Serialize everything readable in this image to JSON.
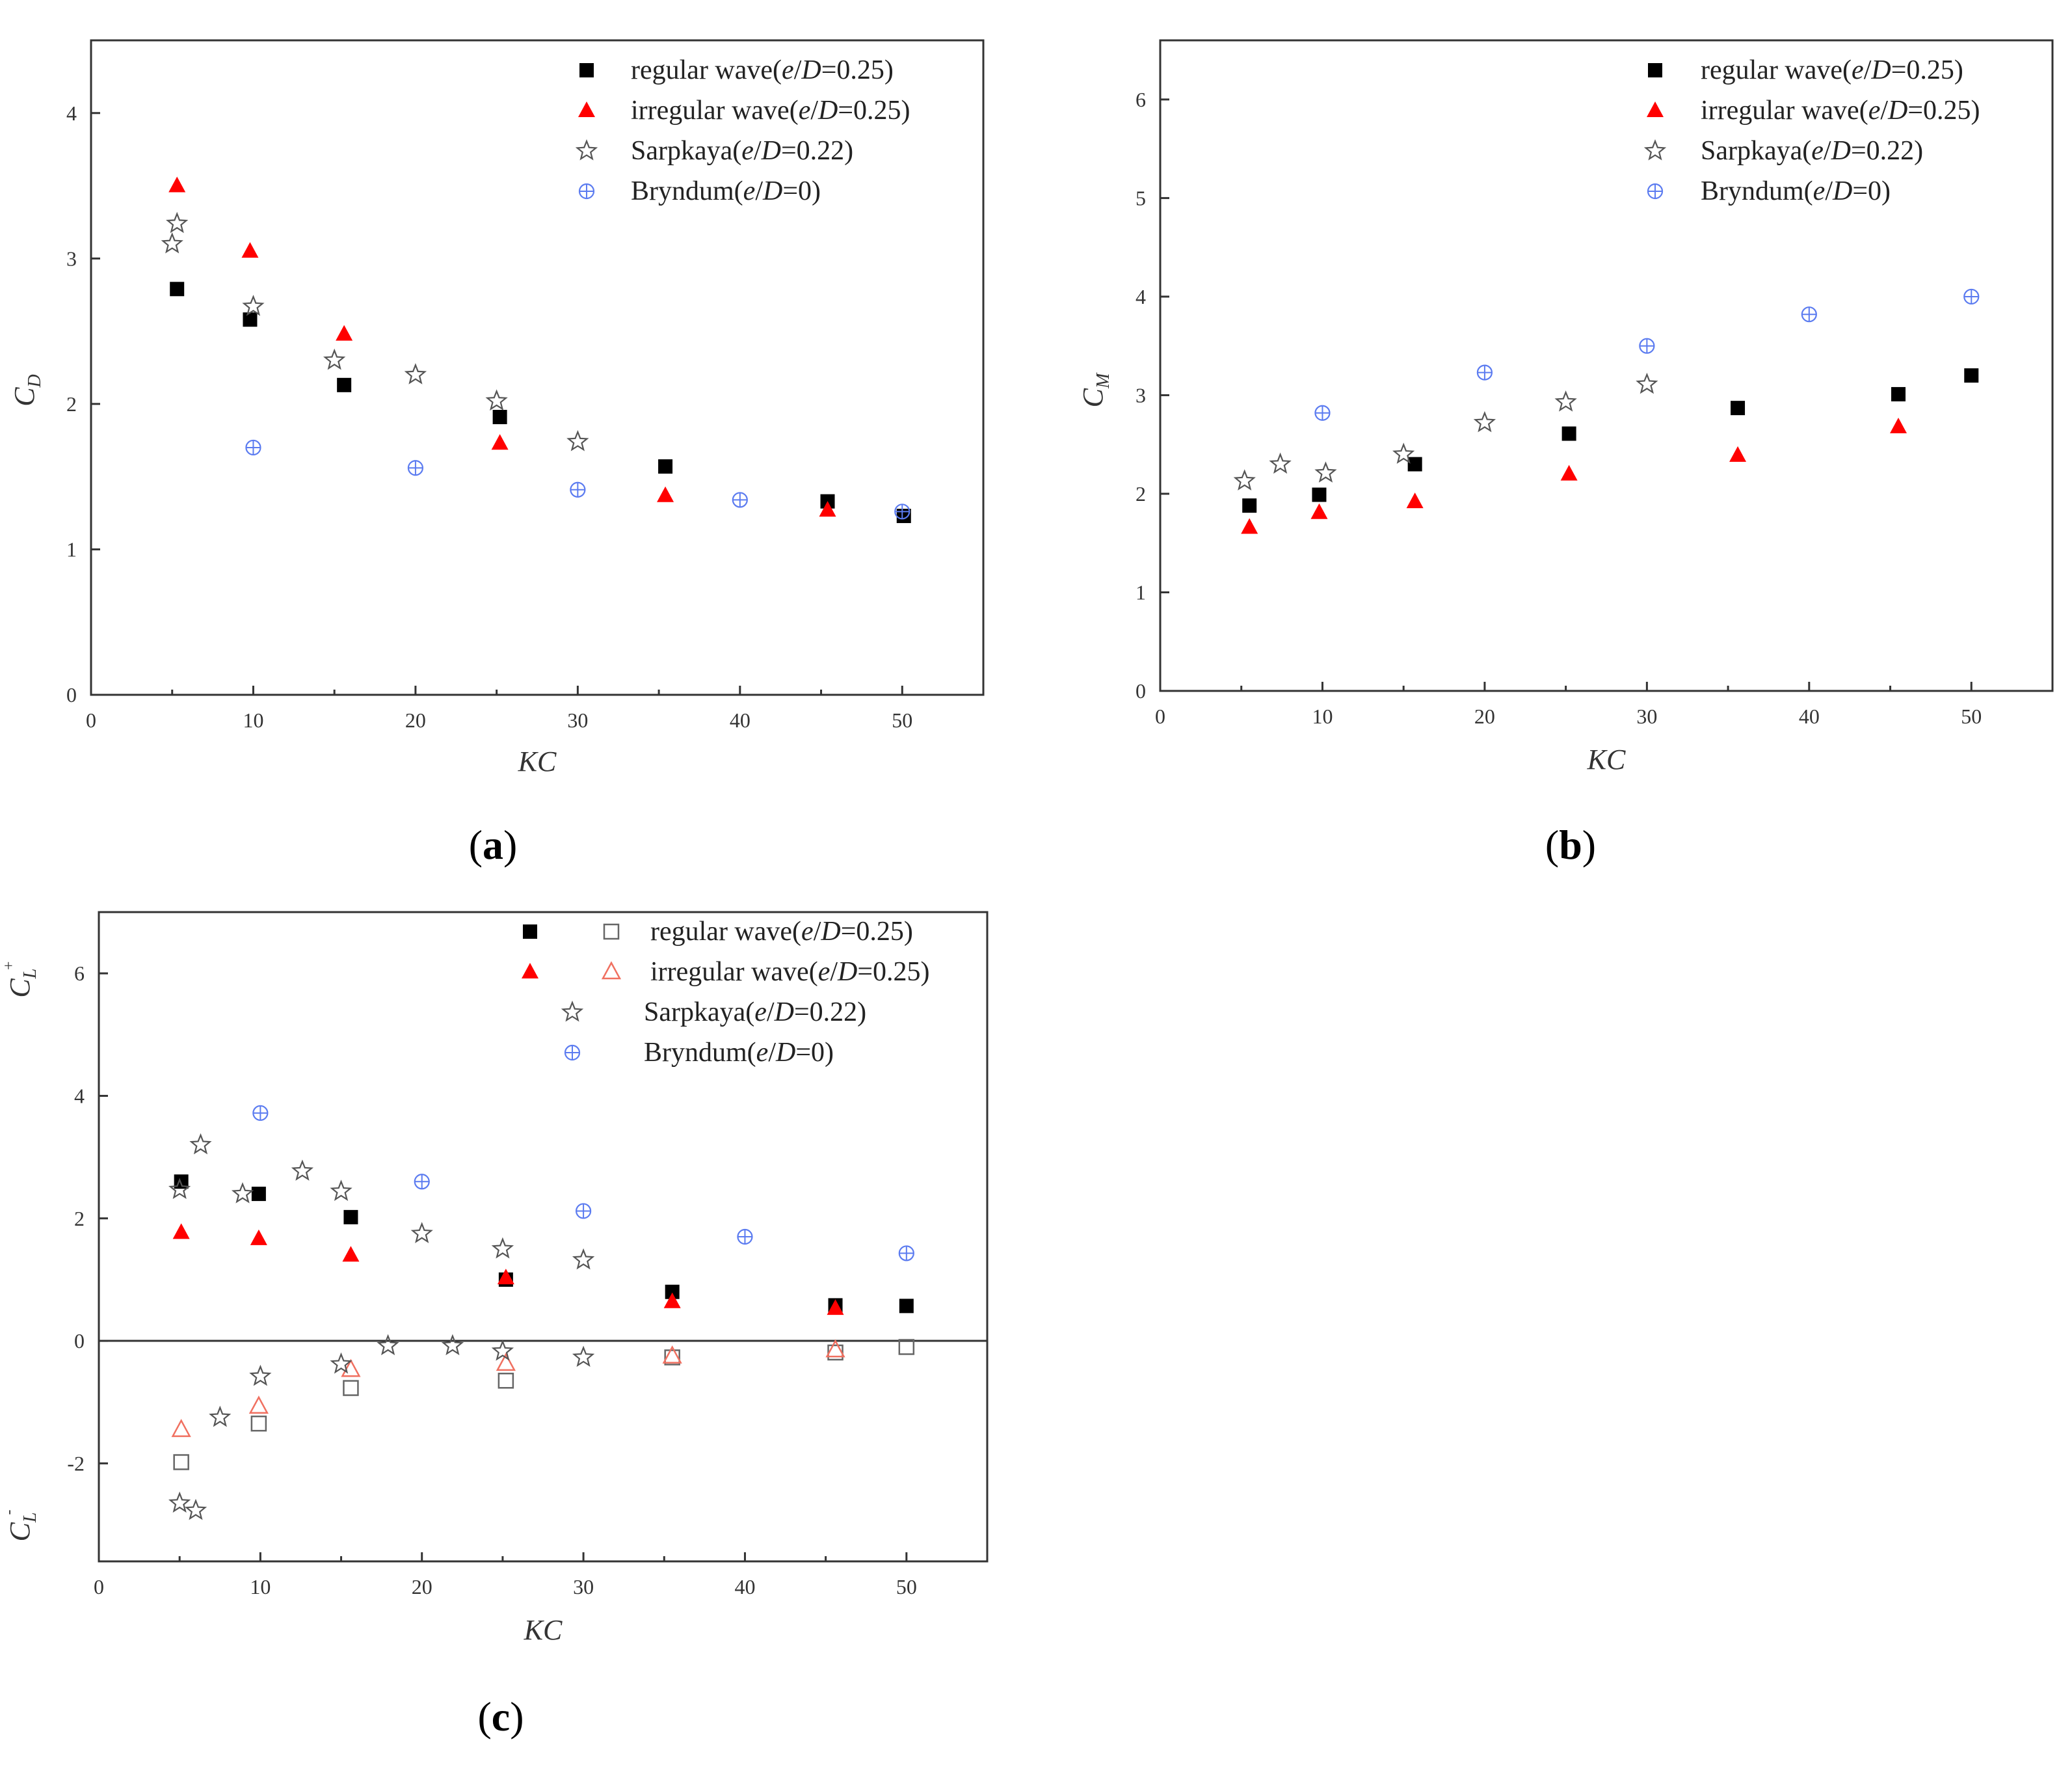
{
  "colors": {
    "regular": "#000000",
    "irregular": "#ff0000",
    "sarpkaya": "#555555",
    "bryndum": "#5b7bf0",
    "regular_open": "#666666",
    "irregular_open": "#f07060",
    "axis": "#333333"
  },
  "chart_data": [
    {
      "type": "scatter",
      "panel": "a",
      "caption": {
        "open": "(",
        "letter": "a",
        "close": ")"
      },
      "xlabel": "KC",
      "ylabel": {
        "main": "C",
        "sub": "D"
      },
      "xlim": [
        0,
        55
      ],
      "ylim": [
        0,
        4.5
      ],
      "xticks": [
        0,
        10,
        20,
        30,
        40,
        50
      ],
      "yticks": [
        0,
        1,
        2,
        3,
        4
      ],
      "legend_position": "top-right",
      "series": [
        {
          "name": "regular wave(e/D=0.25)",
          "label_parts": [
            "regular wave(",
            "e",
            "/",
            "D",
            "=0.25)"
          ],
          "marker": "square-filled",
          "color_key": "regular",
          "points": [
            [
              5.3,
              2.79
            ],
            [
              9.8,
              2.58
            ],
            [
              15.6,
              2.13
            ],
            [
              25.2,
              1.91
            ],
            [
              35.4,
              1.57
            ],
            [
              45.4,
              1.33
            ],
            [
              50.1,
              1.23
            ]
          ]
        },
        {
          "name": "irregular wave(e/D=0.25)",
          "label_parts": [
            "irregular wave(",
            "e",
            "/",
            "D",
            "=0.25)"
          ],
          "marker": "triangle-filled",
          "color_key": "irregular",
          "points": [
            [
              5.3,
              3.5
            ],
            [
              9.8,
              3.05
            ],
            [
              15.6,
              2.48
            ],
            [
              25.2,
              1.73
            ],
            [
              35.4,
              1.37
            ],
            [
              45.4,
              1.27
            ]
          ]
        },
        {
          "name": "Sarpkaya(e/D=0.22)",
          "label_parts": [
            "Sarpkaya(",
            "e",
            "/",
            "D",
            "=0.22)"
          ],
          "marker": "star-open",
          "color_key": "sarpkaya",
          "points": [
            [
              5.0,
              3.1
            ],
            [
              5.3,
              3.24
            ],
            [
              10.0,
              2.67
            ],
            [
              15.0,
              2.3
            ],
            [
              20.0,
              2.2
            ],
            [
              25.0,
              2.02
            ],
            [
              30.0,
              1.74
            ]
          ]
        },
        {
          "name": "Bryndum(e/D=0)",
          "label_parts": [
            "Bryndum(",
            "e",
            "/",
            "D",
            "=0)"
          ],
          "marker": "circle-plus",
          "color_key": "bryndum",
          "points": [
            [
              10.0,
              1.7
            ],
            [
              20.0,
              1.56
            ],
            [
              30.0,
              1.41
            ],
            [
              40.0,
              1.34
            ],
            [
              50.0,
              1.26
            ]
          ]
        }
      ]
    },
    {
      "type": "scatter",
      "panel": "b",
      "caption": {
        "open": "(",
        "letter": "b",
        "close": ")"
      },
      "xlabel": "KC",
      "ylabel": {
        "main": "C",
        "sub": "M"
      },
      "xlim": [
        0,
        55
      ],
      "ylim": [
        0,
        6.6
      ],
      "xticks": [
        0,
        10,
        20,
        30,
        40,
        50
      ],
      "yticks": [
        0,
        1,
        2,
        3,
        4,
        5,
        6
      ],
      "legend_position": "top-right",
      "series": [
        {
          "name": "regular wave(e/D=0.25)",
          "label_parts": [
            "regular wave(",
            "e",
            "/",
            "D",
            "=0.25)"
          ],
          "marker": "square-filled",
          "color_key": "regular",
          "points": [
            [
              5.5,
              1.88
            ],
            [
              9.8,
              1.99
            ],
            [
              15.7,
              2.3
            ],
            [
              25.2,
              2.61
            ],
            [
              35.6,
              2.87
            ],
            [
              45.5,
              3.01
            ],
            [
              50.0,
              3.2
            ]
          ]
        },
        {
          "name": "irregular wave(e/D=0.25)",
          "label_parts": [
            "irregular wave(",
            "e",
            "/",
            "D",
            "=0.25)"
          ],
          "marker": "triangle-filled",
          "color_key": "irregular",
          "points": [
            [
              5.5,
              1.66
            ],
            [
              9.8,
              1.81
            ],
            [
              15.7,
              1.92
            ],
            [
              25.2,
              2.2
            ],
            [
              35.6,
              2.39
            ],
            [
              45.5,
              2.68
            ]
          ]
        },
        {
          "name": "Sarpkaya(e/D=0.22)",
          "label_parts": [
            "Sarpkaya(",
            "e",
            "/",
            "D",
            "=0.22)"
          ],
          "marker": "star-open",
          "color_key": "sarpkaya",
          "points": [
            [
              5.2,
              2.13
            ],
            [
              7.4,
              2.3
            ],
            [
              10.2,
              2.21
            ],
            [
              15.0,
              2.4
            ],
            [
              20.0,
              2.72
            ],
            [
              25.0,
              2.93
            ],
            [
              30.0,
              3.11
            ]
          ]
        },
        {
          "name": "Bryndum(e/D=0)",
          "label_parts": [
            "Bryndum(",
            "e",
            "/",
            "D",
            "=0)"
          ],
          "marker": "circle-plus",
          "color_key": "bryndum",
          "points": [
            [
              10.0,
              2.82
            ],
            [
              20.0,
              3.23
            ],
            [
              30.0,
              3.5
            ],
            [
              40.0,
              3.82
            ],
            [
              50.0,
              4.0
            ]
          ]
        }
      ]
    },
    {
      "type": "scatter",
      "panel": "c",
      "caption": {
        "open": "(",
        "letter": "c",
        "close": ")"
      },
      "xlabel": "KC",
      "ylabel_top": {
        "main": "C",
        "sub": "L",
        "sup": "+"
      },
      "ylabel_bottom": {
        "main": "C",
        "sub": "L",
        "sup": "-"
      },
      "xlim": [
        0,
        55
      ],
      "ylim": [
        -3.6,
        7
      ],
      "xticks": [
        0,
        10,
        20,
        30,
        40,
        50
      ],
      "yticks": [
        -2,
        0,
        2,
        4,
        6
      ],
      "zero_line": true,
      "legend_position": "top-right",
      "series": [
        {
          "name": "regular wave(e/D=0.25)",
          "label_parts": [
            "regular wave(",
            "e",
            "/",
            "D",
            "=0.25)"
          ],
          "marker": "square-filled",
          "color_key": "regular",
          "paired_marker": "square-open",
          "paired_color_key": "regular_open",
          "points": [
            [
              5.1,
              2.6
            ],
            [
              9.9,
              2.4
            ],
            [
              15.6,
              2.02
            ],
            [
              25.2,
              1.0
            ],
            [
              35.5,
              0.8
            ],
            [
              45.6,
              0.58
            ],
            [
              50.0,
              0.57
            ]
          ]
        },
        {
          "name": "regular wave(e/D=0.25) C_L-",
          "legend": false,
          "marker": "square-open",
          "color_key": "regular_open",
          "points": [
            [
              5.1,
              -1.98
            ],
            [
              9.9,
              -1.35
            ],
            [
              15.6,
              -0.77
            ],
            [
              25.2,
              -0.65
            ],
            [
              35.5,
              -0.27
            ],
            [
              45.6,
              -0.19
            ],
            [
              50.0,
              -0.1
            ]
          ]
        },
        {
          "name": "irregular wave(e/D=0.25)",
          "label_parts": [
            "irregular wave(",
            "e",
            "/",
            "D",
            "=0.25)"
          ],
          "marker": "triangle-filled",
          "color_key": "irregular",
          "paired_marker": "triangle-open",
          "paired_color_key": "irregular_open",
          "points": [
            [
              5.1,
              1.77
            ],
            [
              9.9,
              1.67
            ],
            [
              15.6,
              1.4
            ],
            [
              25.2,
              1.03
            ],
            [
              35.5,
              0.64
            ],
            [
              45.6,
              0.53
            ]
          ]
        },
        {
          "name": "irregular wave(e/D=0.25) C_L-",
          "legend": false,
          "marker": "triangle-open",
          "color_key": "irregular_open",
          "points": [
            [
              5.1,
              -1.45
            ],
            [
              9.9,
              -1.07
            ],
            [
              15.6,
              -0.47
            ],
            [
              25.2,
              -0.37
            ],
            [
              35.5,
              -0.25
            ],
            [
              45.6,
              -0.15
            ]
          ]
        },
        {
          "name": "Sarpkaya(e/D=0.22)",
          "label_parts": [
            "Sarpkaya(",
            "e",
            "/",
            "D",
            "=0.22)"
          ],
          "marker": "star-open",
          "color_key": "sarpkaya",
          "points": [
            [
              5.0,
              2.47
            ],
            [
              6.3,
              3.2
            ],
            [
              8.9,
              2.4
            ],
            [
              12.6,
              2.77
            ],
            [
              15.0,
              2.44
            ],
            [
              20.0,
              1.75
            ],
            [
              25.0,
              1.5
            ],
            [
              30.0,
              1.32
            ],
            [
              5.0,
              -2.65
            ],
            [
              6.0,
              -2.77
            ],
            [
              7.5,
              -1.25
            ],
            [
              10.0,
              -0.58
            ],
            [
              15.0,
              -0.38
            ],
            [
              17.9,
              -0.08
            ],
            [
              21.9,
              -0.08
            ],
            [
              25.0,
              -0.17
            ],
            [
              30.0,
              -0.27
            ]
          ]
        },
        {
          "name": "Bryndum(e/D=0)",
          "label_parts": [
            "Bryndum(",
            "e",
            "/",
            "D",
            "=0)"
          ],
          "marker": "circle-plus",
          "color_key": "bryndum",
          "points": [
            [
              10.0,
              3.72
            ],
            [
              20.0,
              2.6
            ],
            [
              30.0,
              2.12
            ],
            [
              40.0,
              1.7
            ],
            [
              50.0,
              1.43
            ]
          ]
        }
      ]
    }
  ]
}
